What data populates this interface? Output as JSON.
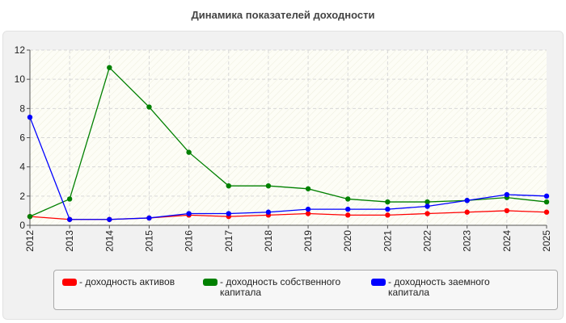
{
  "chart_data": {
    "type": "line",
    "title": "Динамика показателей доходности",
    "x": [
      "2012",
      "2013",
      "2014",
      "2015",
      "2016",
      "2017",
      "2018",
      "2019",
      "2020",
      "2021",
      "2022",
      "2023",
      "2024",
      "2025"
    ],
    "ylim": [
      0,
      12
    ],
    "yticks": [
      "0",
      "2",
      "4",
      "6",
      "8",
      "10",
      "12"
    ],
    "grid": true,
    "legend_position": "bottom",
    "series": [
      {
        "name": "- доходность активов",
        "color": "#ff0000",
        "values": [
          0.6,
          0.4,
          0.4,
          0.5,
          0.7,
          0.6,
          0.7,
          0.8,
          0.7,
          0.7,
          0.8,
          0.9,
          1.0,
          0.9
        ]
      },
      {
        "name": "- доходность собственного капитала",
        "color": "#008000",
        "values": [
          0.6,
          1.8,
          10.8,
          8.1,
          5.0,
          2.7,
          2.7,
          2.5,
          1.8,
          1.6,
          1.6,
          1.7,
          1.9,
          1.6
        ]
      },
      {
        "name": "- доходность заемного капитала",
        "color": "#0000ff",
        "values": [
          7.4,
          0.4,
          0.4,
          0.5,
          0.8,
          0.8,
          0.9,
          1.1,
          1.1,
          1.1,
          1.3,
          1.7,
          2.1,
          2.0
        ]
      }
    ]
  }
}
